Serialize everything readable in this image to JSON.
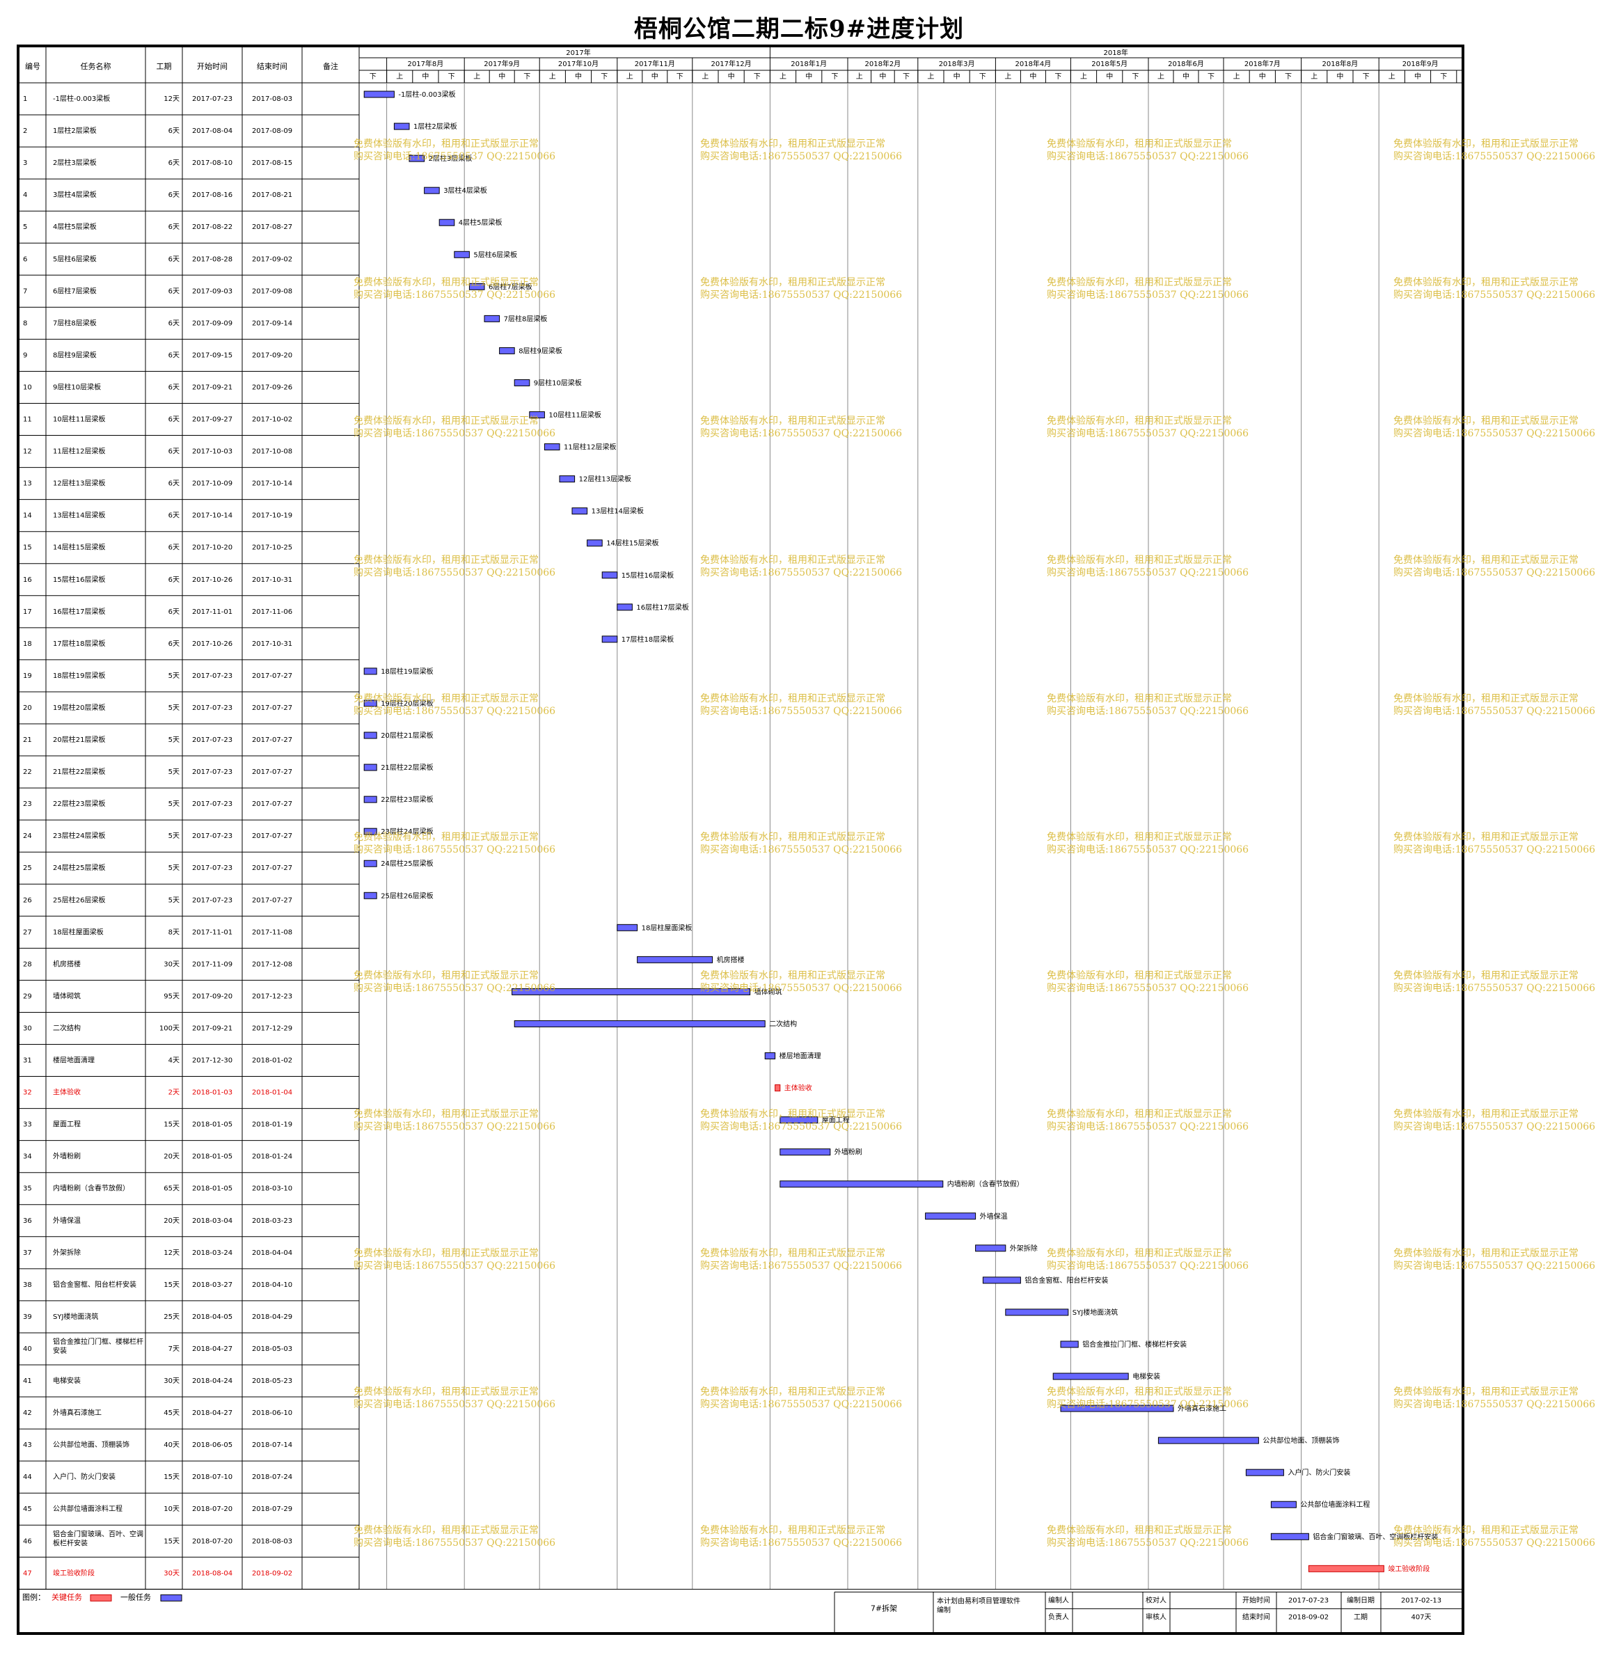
{
  "title": "梧桐公馆二期二标9#进度计划",
  "table_headers": [
    "编号",
    "任务名称",
    "工期",
    "开始时间",
    "结束时间",
    "备注"
  ],
  "colors": {
    "critical": "#ff6b6b",
    "normal": "#6666ff",
    "critical_text": "#e60000",
    "watermark": "#d6b428"
  },
  "chart_data": {
    "type": "gantt",
    "timeline": {
      "years": [
        {
          "label": "2017年",
          "months": 5
        },
        {
          "label": "2018年",
          "months": 9
        }
      ],
      "months": [
        {
          "label": "2017年8月",
          "start": "2017-08-01"
        },
        {
          "label": "2017年9月",
          "start": "2017-09-01"
        },
        {
          "label": "2017年10月",
          "start": "2017-10-01"
        },
        {
          "label": "2017年11月",
          "start": "2017-11-01"
        },
        {
          "label": "2017年12月",
          "start": "2017-12-01"
        },
        {
          "label": "2018年1月",
          "start": "2018-01-01"
        },
        {
          "label": "2018年2月",
          "start": "2018-02-01"
        },
        {
          "label": "2018年3月",
          "start": "2018-03-01"
        },
        {
          "label": "2018年4月",
          "start": "2018-04-01"
        },
        {
          "label": "2018年5月",
          "start": "2018-05-01"
        },
        {
          "label": "2018年6月",
          "start": "2018-06-01"
        },
        {
          "label": "2018年7月",
          "start": "2018-07-01"
        },
        {
          "label": "2018年8月",
          "start": "2018-08-01"
        },
        {
          "label": "2018年9月",
          "start": "2018-09-01"
        }
      ],
      "start": "2017-07-21",
      "end": "2018-10-03",
      "period_labels": [
        "上",
        "中",
        "下"
      ]
    },
    "tasks": [
      {
        "id": "1",
        "name": "-1层柱-0.003梁板",
        "duration": "12天",
        "start": "2017-07-23",
        "end": "2017-08-03",
        "critical": false
      },
      {
        "id": "2",
        "name": "1层柱2层梁板",
        "duration": "6天",
        "start": "2017-08-04",
        "end": "2017-08-09",
        "critical": false
      },
      {
        "id": "3",
        "name": "2层柱3层梁板",
        "duration": "6天",
        "start": "2017-08-10",
        "end": "2017-08-15",
        "critical": false
      },
      {
        "id": "4",
        "name": "3层柱4层梁板",
        "duration": "6天",
        "start": "2017-08-16",
        "end": "2017-08-21",
        "critical": false
      },
      {
        "id": "5",
        "name": "4层柱5层梁板",
        "duration": "6天",
        "start": "2017-08-22",
        "end": "2017-08-27",
        "critical": false
      },
      {
        "id": "6",
        "name": "5层柱6层梁板",
        "duration": "6天",
        "start": "2017-08-28",
        "end": "2017-09-02",
        "critical": false
      },
      {
        "id": "7",
        "name": "6层柱7层梁板",
        "duration": "6天",
        "start": "2017-09-03",
        "end": "2017-09-08",
        "critical": false
      },
      {
        "id": "8",
        "name": "7层柱8层梁板",
        "duration": "6天",
        "start": "2017-09-09",
        "end": "2017-09-14",
        "critical": false
      },
      {
        "id": "9",
        "name": "8层柱9层梁板",
        "duration": "6天",
        "start": "2017-09-15",
        "end": "2017-09-20",
        "critical": false
      },
      {
        "id": "10",
        "name": "9层柱10层梁板",
        "duration": "6天",
        "start": "2017-09-21",
        "end": "2017-09-26",
        "critical": false
      },
      {
        "id": "11",
        "name": "10层柱11层梁板",
        "duration": "6天",
        "start": "2017-09-27",
        "end": "2017-10-02",
        "critical": false
      },
      {
        "id": "12",
        "name": "11层柱12层梁板",
        "duration": "6天",
        "start": "2017-10-03",
        "end": "2017-10-08",
        "critical": false
      },
      {
        "id": "13",
        "name": "12层柱13层梁板",
        "duration": "6天",
        "start": "2017-10-09",
        "end": "2017-10-14",
        "critical": false
      },
      {
        "id": "14",
        "name": "13层柱14层梁板",
        "duration": "6天",
        "start": "2017-10-14",
        "end": "2017-10-19",
        "critical": false
      },
      {
        "id": "15",
        "name": "14层柱15层梁板",
        "duration": "6天",
        "start": "2017-10-20",
        "end": "2017-10-25",
        "critical": false
      },
      {
        "id": "16",
        "name": "15层柱16层梁板",
        "duration": "6天",
        "start": "2017-10-26",
        "end": "2017-10-31",
        "critical": false
      },
      {
        "id": "17",
        "name": "16层柱17层梁板",
        "duration": "6天",
        "start": "2017-11-01",
        "end": "2017-11-06",
        "critical": false
      },
      {
        "id": "18",
        "name": "17层柱18层梁板",
        "duration": "6天",
        "start": "2017-10-26",
        "end": "2017-10-31",
        "critical": false
      },
      {
        "id": "19",
        "name": "18层柱19层梁板",
        "duration": "5天",
        "start": "2017-07-23",
        "end": "2017-07-27",
        "critical": false
      },
      {
        "id": "20",
        "name": "19层柱20层梁板",
        "duration": "5天",
        "start": "2017-07-23",
        "end": "2017-07-27",
        "critical": false
      },
      {
        "id": "21",
        "name": "20层柱21层梁板",
        "duration": "5天",
        "start": "2017-07-23",
        "end": "2017-07-27",
        "critical": false
      },
      {
        "id": "22",
        "name": "21层柱22层梁板",
        "duration": "5天",
        "start": "2017-07-23",
        "end": "2017-07-27",
        "critical": false
      },
      {
        "id": "23",
        "name": "22层柱23层梁板",
        "duration": "5天",
        "start": "2017-07-23",
        "end": "2017-07-27",
        "critical": false
      },
      {
        "id": "24",
        "name": "23层柱24层梁板",
        "duration": "5天",
        "start": "2017-07-23",
        "end": "2017-07-27",
        "critical": false
      },
      {
        "id": "25",
        "name": "24层柱25层梁板",
        "duration": "5天",
        "start": "2017-07-23",
        "end": "2017-07-27",
        "critical": false
      },
      {
        "id": "26",
        "name": "25层柱26层梁板",
        "duration": "5天",
        "start": "2017-07-23",
        "end": "2017-07-27",
        "critical": false
      },
      {
        "id": "27",
        "name": "18层柱屋面梁板",
        "duration": "8天",
        "start": "2017-11-01",
        "end": "2017-11-08",
        "critical": false
      },
      {
        "id": "28",
        "name": "机房搭楼",
        "duration": "30天",
        "start": "2017-11-09",
        "end": "2017-12-08",
        "critical": false
      },
      {
        "id": "29",
        "name": "墙体砌筑",
        "duration": "95天",
        "start": "2017-09-20",
        "end": "2017-12-23",
        "critical": false
      },
      {
        "id": "30",
        "name": "二次结构",
        "duration": "100天",
        "start": "2017-09-21",
        "end": "2017-12-29",
        "critical": false
      },
      {
        "id": "31",
        "name": "楼层地面清理",
        "duration": "4天",
        "start": "2017-12-30",
        "end": "2018-01-02",
        "critical": false
      },
      {
        "id": "32",
        "name": "主体验收",
        "duration": "2天",
        "start": "2018-01-03",
        "end": "2018-01-04",
        "critical": true
      },
      {
        "id": "33",
        "name": "屋面工程",
        "duration": "15天",
        "start": "2018-01-05",
        "end": "2018-01-19",
        "critical": false
      },
      {
        "id": "34",
        "name": "外墙粉刷",
        "duration": "20天",
        "start": "2018-01-05",
        "end": "2018-01-24",
        "critical": false
      },
      {
        "id": "35",
        "name": "内墙粉刷（含春节放假）",
        "duration": "65天",
        "start": "2018-01-05",
        "end": "2018-03-10",
        "critical": false
      },
      {
        "id": "36",
        "name": "外墙保温",
        "duration": "20天",
        "start": "2018-03-04",
        "end": "2018-03-23",
        "critical": false
      },
      {
        "id": "37",
        "name": "外架拆除",
        "duration": "12天",
        "start": "2018-03-24",
        "end": "2018-04-04",
        "critical": false
      },
      {
        "id": "38",
        "name": "铝合金窗框、阳台栏杆安装",
        "duration": "15天",
        "start": "2018-03-27",
        "end": "2018-04-10",
        "critical": false
      },
      {
        "id": "39",
        "name": "SYJ楼地面浇筑",
        "duration": "25天",
        "start": "2018-04-05",
        "end": "2018-04-29",
        "critical": false
      },
      {
        "id": "40",
        "name": "铝合金推拉门门框、楼梯栏杆安装",
        "duration": "7天",
        "start": "2018-04-27",
        "end": "2018-05-03",
        "critical": false
      },
      {
        "id": "41",
        "name": "电梯安装",
        "duration": "30天",
        "start": "2018-04-24",
        "end": "2018-05-23",
        "critical": false
      },
      {
        "id": "42",
        "name": "外墙真石漆施工",
        "duration": "45天",
        "start": "2018-04-27",
        "end": "2018-06-10",
        "critical": false
      },
      {
        "id": "43",
        "name": "公共部位地面、顶棚装饰",
        "duration": "40天",
        "start": "2018-06-05",
        "end": "2018-07-14",
        "critical": false
      },
      {
        "id": "44",
        "name": "入户门、防火门安装",
        "duration": "15天",
        "start": "2018-07-10",
        "end": "2018-07-24",
        "critical": false
      },
      {
        "id": "45",
        "name": "公共部位墙面涂料工程",
        "duration": "10天",
        "start": "2018-07-20",
        "end": "2018-07-29",
        "critical": false
      },
      {
        "id": "46",
        "name": "铝合金门窗玻璃、百叶、空调板栏杆安装",
        "duration": "15天",
        "start": "2018-07-20",
        "end": "2018-08-03",
        "critical": false
      },
      {
        "id": "47",
        "name": "竣工验收阶段",
        "duration": "30天",
        "start": "2018-08-04",
        "end": "2018-09-02",
        "critical": true
      }
    ]
  },
  "watermark": {
    "line1": "免费体验版有水印，租用和正式版显示正常",
    "line2": "购买咨询电话:18675550537 QQ:22150066"
  },
  "footer": {
    "legend_label": "图例：",
    "legend_critical": "关键任务",
    "legend_normal": "一般任务",
    "project": "7#拆架",
    "software_note": "本计划由易利项目管理软件编制",
    "compiler_label": "编制人",
    "checker_label": "校对人",
    "owner_label": "负责人",
    "reviewer_label": "审核人",
    "start_label": "开始时间",
    "start_value": "2017-07-23",
    "date_label": "编制日期",
    "date_value": "2017-02-13",
    "end_label": "结束时间",
    "end_value": "2018-09-02",
    "duration_label": "工期",
    "duration_value": "407天"
  }
}
